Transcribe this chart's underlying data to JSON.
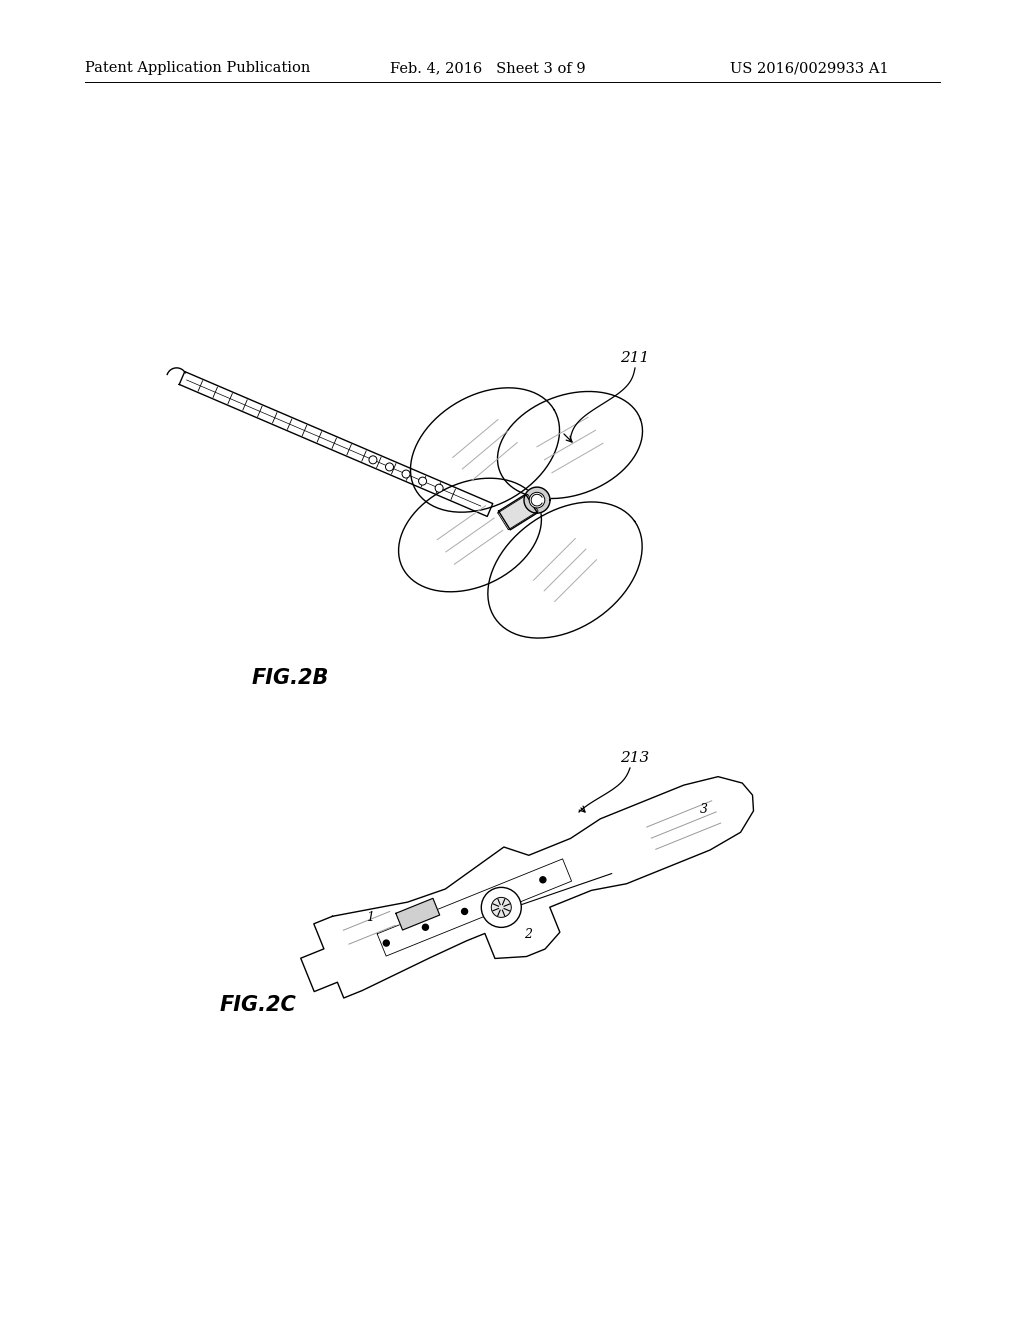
{
  "background_color": "#ffffff",
  "header_left": "Patent Application Publication",
  "header_mid": "Feb. 4, 2016   Sheet 3 of 9",
  "header_right": "US 2016/0029933 A1",
  "header_fontsize": 10.5,
  "fig2b_label": "FIG.2B",
  "fig2b_label_fontsize": 15,
  "fig2c_label": "FIG.2C",
  "fig2c_label_fontsize": 15,
  "text_color": "#000000",
  "line_color": "#000000",
  "line_width": 1.0
}
